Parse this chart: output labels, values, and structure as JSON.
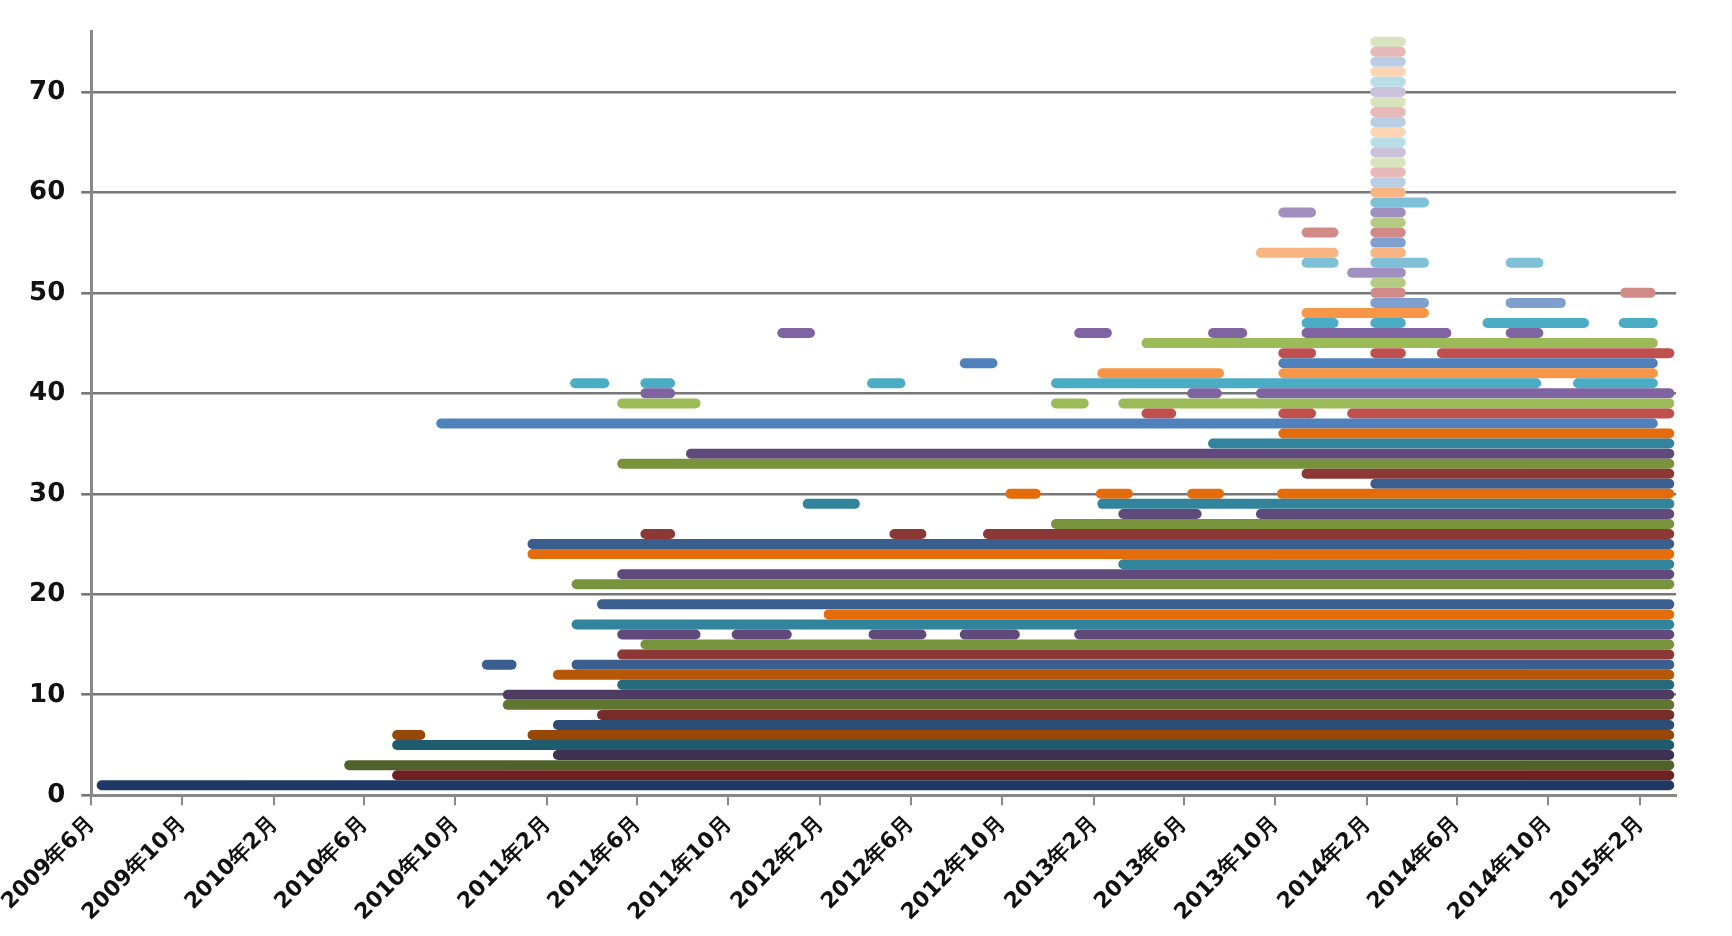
{
  "chart_data": {
    "type": "line",
    "grid": "y",
    "legend": false,
    "line_style": "solid",
    "xlim": [
      "2009-06-01",
      "2015-03-21"
    ],
    "ylim": [
      0,
      76
    ],
    "yticks": [
      0,
      10,
      20,
      30,
      40,
      50,
      60,
      70
    ],
    "xticks": [
      {
        "value": "2009-06",
        "label": "2009年6月"
      },
      {
        "value": "2009-10",
        "label": "2009年10月"
      },
      {
        "value": "2010-02",
        "label": "2010年2月"
      },
      {
        "value": "2010-06",
        "label": "2010年6月"
      },
      {
        "value": "2010-10",
        "label": "2010年10月"
      },
      {
        "value": "2011-02",
        "label": "2011年2月"
      },
      {
        "value": "2011-06",
        "label": "2011年6月"
      },
      {
        "value": "2011-10",
        "label": "2011年10月"
      },
      {
        "value": "2012-02",
        "label": "2012年2月"
      },
      {
        "value": "2012-06",
        "label": "2012年6月"
      },
      {
        "value": "2012-10",
        "label": "2012年10月"
      },
      {
        "value": "2013-02",
        "label": "2013年2月"
      },
      {
        "value": "2013-06",
        "label": "2013年6月"
      },
      {
        "value": "2013-10",
        "label": "2013年10月"
      },
      {
        "value": "2014-02",
        "label": "2014年2月"
      },
      {
        "value": "2014-06",
        "label": "2014年6月"
      },
      {
        "value": "2014-10",
        "label": "2014年10月"
      },
      {
        "value": "2015-02",
        "label": "2015年2月"
      }
    ],
    "series": [
      {
        "color": "#1f3864",
        "x": [
          "2009-06-15",
          "2015-03-12"
        ],
        "values": [
          1,
          1
        ]
      },
      {
        "color": "#6e2220",
        "x": [
          "2010-07-15",
          "2015-03-12"
        ],
        "values": [
          2,
          2
        ]
      },
      {
        "color": "#4f6228",
        "x": [
          "2010-05-12",
          "2015-03-12"
        ],
        "values": [
          3,
          3
        ]
      },
      {
        "color": "#3f3151",
        "x": [
          "2011-02-15",
          "2015-03-12"
        ],
        "values": [
          4,
          4
        ]
      },
      {
        "color": "#1f5c6e",
        "x": [
          "2010-07-15",
          "2015-03-12"
        ],
        "values": [
          5,
          5
        ]
      },
      {
        "color": "#974806",
        "x": [
          "2010-07-15",
          "2010-08-15"
        ],
        "values": [
          6,
          6
        ]
      },
      {
        "color": "#974806",
        "x": [
          "2011-01-12",
          "2015-03-12"
        ],
        "values": [
          6,
          6
        ]
      },
      {
        "color": "#2c4d75",
        "x": [
          "2011-02-15",
          "2015-03-12"
        ],
        "values": [
          7,
          7
        ]
      },
      {
        "color": "#772c2a",
        "x": [
          "2011-04-15",
          "2015-03-12"
        ],
        "values": [
          8,
          8
        ]
      },
      {
        "color": "#5f7530",
        "x": [
          "2010-12-10",
          "2015-03-12"
        ],
        "values": [
          9,
          9
        ]
      },
      {
        "color": "#4d3b62",
        "x": [
          "2010-12-10",
          "2015-03-12"
        ],
        "values": [
          10,
          10
        ]
      },
      {
        "color": "#276a7c",
        "x": [
          "2011-05-12",
          "2015-03-12"
        ],
        "values": [
          11,
          11
        ]
      },
      {
        "color": "#b65708",
        "x": [
          "2011-02-15",
          "2015-03-12"
        ],
        "values": [
          12,
          12
        ]
      },
      {
        "color": "#3a5f8f",
        "x": [
          "2010-11-12",
          "2010-12-15"
        ],
        "values": [
          13,
          13
        ]
      },
      {
        "color": "#3a5f8f",
        "x": [
          "2011-03-12",
          "2015-03-12"
        ],
        "values": [
          13,
          13
        ]
      },
      {
        "color": "#8c3836",
        "x": [
          "2011-05-12",
          "2015-03-12"
        ],
        "values": [
          14,
          14
        ]
      },
      {
        "color": "#77933c",
        "x": [
          "2011-06-12",
          "2015-03-12"
        ],
        "values": [
          15,
          15
        ]
      },
      {
        "color": "#604a7b",
        "x": [
          "2011-05-12",
          "2011-08-18"
        ],
        "values": [
          16,
          16
        ]
      },
      {
        "color": "#604a7b",
        "x": [
          "2011-10-12",
          "2011-12-18"
        ],
        "values": [
          16,
          16
        ]
      },
      {
        "color": "#604a7b",
        "x": [
          "2012-04-12",
          "2012-06-15"
        ],
        "values": [
          16,
          16
        ]
      },
      {
        "color": "#604a7b",
        "x": [
          "2012-08-12",
          "2012-10-18"
        ],
        "values": [
          16,
          16
        ]
      },
      {
        "color": "#604a7b",
        "x": [
          "2013-01-12",
          "2015-03-12"
        ],
        "values": [
          16,
          16
        ]
      },
      {
        "color": "#31849b",
        "x": [
          "2011-03-12",
          "2015-03-12"
        ],
        "values": [
          17,
          17
        ]
      },
      {
        "color": "#e46c0a",
        "x": [
          "2012-02-12",
          "2015-03-12"
        ],
        "values": [
          18,
          18
        ]
      },
      {
        "color": "#3a5f8f",
        "x": [
          "2011-04-15",
          "2015-03-12"
        ],
        "values": [
          19,
          19
        ]
      },
      {
        "color": "#77933c",
        "x": [
          "2011-03-12",
          "2015-03-12"
        ],
        "values": [
          21,
          21
        ]
      },
      {
        "color": "#604a7b",
        "x": [
          "2011-05-12",
          "2015-03-12"
        ],
        "values": [
          22,
          22
        ]
      },
      {
        "color": "#31849b",
        "x": [
          "2013-03-12",
          "2015-03-12"
        ],
        "values": [
          23,
          23
        ]
      },
      {
        "color": "#e46c0a",
        "x": [
          "2011-01-12",
          "2015-03-12"
        ],
        "values": [
          24,
          24
        ]
      },
      {
        "color": "#3a5f8f",
        "x": [
          "2011-01-12",
          "2015-03-12"
        ],
        "values": [
          25,
          25
        ]
      },
      {
        "color": "#8c3836",
        "x": [
          "2011-06-12",
          "2011-07-15"
        ],
        "values": [
          26,
          26
        ]
      },
      {
        "color": "#8c3836",
        "x": [
          "2012-05-10",
          "2012-06-15"
        ],
        "values": [
          26,
          26
        ]
      },
      {
        "color": "#8c3836",
        "x": [
          "2012-09-12",
          "2015-03-12"
        ],
        "values": [
          26,
          26
        ]
      },
      {
        "color": "#77933c",
        "x": [
          "2012-12-12",
          "2015-03-12"
        ],
        "values": [
          27,
          27
        ]
      },
      {
        "color": "#604a7b",
        "x": [
          "2013-03-12",
          "2013-06-18"
        ],
        "values": [
          28,
          28
        ]
      },
      {
        "color": "#604a7b",
        "x": [
          "2013-09-12",
          "2015-03-12"
        ],
        "values": [
          28,
          28
        ]
      },
      {
        "color": "#31849b",
        "x": [
          "2012-01-15",
          "2012-03-18"
        ],
        "values": [
          29,
          29
        ]
      },
      {
        "color": "#31849b",
        "x": [
          "2013-02-12",
          "2015-03-12"
        ],
        "values": [
          29,
          29
        ]
      },
      {
        "color": "#e46c0a",
        "x": [
          "2012-10-12",
          "2012-11-15"
        ],
        "values": [
          30,
          30
        ]
      },
      {
        "color": "#e46c0a",
        "x": [
          "2013-02-10",
          "2013-03-18"
        ],
        "values": [
          30,
          30
        ]
      },
      {
        "color": "#e46c0a",
        "x": [
          "2013-06-12",
          "2013-07-18"
        ],
        "values": [
          30,
          30
        ]
      },
      {
        "color": "#e46c0a",
        "x": [
          "2013-10-10",
          "2015-03-12"
        ],
        "values": [
          30,
          30
        ]
      },
      {
        "color": "#3a5f8f",
        "x": [
          "2014-02-12",
          "2015-03-12"
        ],
        "values": [
          31,
          31
        ]
      },
      {
        "color": "#8c3836",
        "x": [
          "2013-11-12",
          "2015-03-12"
        ],
        "values": [
          32,
          32
        ]
      },
      {
        "color": "#77933c",
        "x": [
          "2011-05-12",
          "2015-03-12"
        ],
        "values": [
          33,
          33
        ]
      },
      {
        "color": "#604a7b",
        "x": [
          "2011-08-12",
          "2015-03-12"
        ],
        "values": [
          34,
          34
        ]
      },
      {
        "color": "#31849b",
        "x": [
          "2013-07-10",
          "2015-03-12"
        ],
        "values": [
          35,
          35
        ]
      },
      {
        "color": "#e46c0a",
        "x": [
          "2013-10-12",
          "2015-03-12"
        ],
        "values": [
          36,
          36
        ]
      },
      {
        "color": "#4f81bd",
        "x": [
          "2010-09-12",
          "2015-02-18"
        ],
        "values": [
          37,
          37
        ]
      },
      {
        "color": "#c0504d",
        "x": [
          "2013-04-12",
          "2013-05-15"
        ],
        "values": [
          38,
          38
        ]
      },
      {
        "color": "#c0504d",
        "x": [
          "2013-10-12",
          "2013-11-18"
        ],
        "values": [
          38,
          38
        ]
      },
      {
        "color": "#c0504d",
        "x": [
          "2014-01-12",
          "2015-03-12"
        ],
        "values": [
          38,
          38
        ]
      },
      {
        "color": "#9bbb59",
        "x": [
          "2011-05-12",
          "2011-08-18"
        ],
        "values": [
          39,
          39
        ]
      },
      {
        "color": "#9bbb59",
        "x": [
          "2012-12-12",
          "2013-01-18"
        ],
        "values": [
          39,
          39
        ]
      },
      {
        "color": "#9bbb59",
        "x": [
          "2013-03-12",
          "2015-03-12"
        ],
        "values": [
          39,
          39
        ]
      },
      {
        "color": "#8064a2",
        "x": [
          "2011-06-12",
          "2011-07-15"
        ],
        "values": [
          40,
          40
        ]
      },
      {
        "color": "#8064a2",
        "x": [
          "2013-06-12",
          "2013-07-15"
        ],
        "values": [
          40,
          40
        ]
      },
      {
        "color": "#8064a2",
        "x": [
          "2013-09-12",
          "2015-03-12"
        ],
        "values": [
          40,
          40
        ]
      },
      {
        "color": "#4bacc6",
        "x": [
          "2011-03-10",
          "2011-04-18"
        ],
        "values": [
          41,
          41
        ]
      },
      {
        "color": "#4bacc6",
        "x": [
          "2011-06-12",
          "2011-07-15"
        ],
        "values": [
          41,
          41
        ]
      },
      {
        "color": "#4bacc6",
        "x": [
          "2012-04-10",
          "2012-05-18"
        ],
        "values": [
          41,
          41
        ]
      },
      {
        "color": "#4bacc6",
        "x": [
          "2012-12-12",
          "2014-09-15"
        ],
        "values": [
          41,
          41
        ]
      },
      {
        "color": "#4bacc6",
        "x": [
          "2014-11-10",
          "2015-02-18"
        ],
        "values": [
          41,
          41
        ]
      },
      {
        "color": "#f79646",
        "x": [
          "2013-02-12",
          "2013-07-18"
        ],
        "values": [
          42,
          42
        ]
      },
      {
        "color": "#f79646",
        "x": [
          "2013-10-12",
          "2015-02-18"
        ],
        "values": [
          42,
          42
        ]
      },
      {
        "color": "#4f81bd",
        "x": [
          "2012-08-12",
          "2012-09-18"
        ],
        "values": [
          43,
          43
        ]
      },
      {
        "color": "#4f81bd",
        "x": [
          "2013-10-12",
          "2015-02-18"
        ],
        "values": [
          43,
          43
        ]
      },
      {
        "color": "#c0504d",
        "x": [
          "2013-10-12",
          "2013-11-18"
        ],
        "values": [
          44,
          44
        ]
      },
      {
        "color": "#c0504d",
        "x": [
          "2014-02-12",
          "2014-03-18"
        ],
        "values": [
          44,
          44
        ]
      },
      {
        "color": "#c0504d",
        "x": [
          "2014-05-12",
          "2015-03-12"
        ],
        "values": [
          44,
          44
        ]
      },
      {
        "color": "#9bbb59",
        "x": [
          "2013-04-12",
          "2015-02-18"
        ],
        "values": [
          45,
          45
        ]
      },
      {
        "color": "#8064a2",
        "x": [
          "2011-12-12",
          "2012-01-18"
        ],
        "values": [
          46,
          46
        ]
      },
      {
        "color": "#8064a2",
        "x": [
          "2013-01-12",
          "2013-02-18"
        ],
        "values": [
          46,
          46
        ]
      },
      {
        "color": "#8064a2",
        "x": [
          "2013-07-10",
          "2013-08-18"
        ],
        "values": [
          46,
          46
        ]
      },
      {
        "color": "#8064a2",
        "x": [
          "2013-11-12",
          "2014-05-18"
        ],
        "values": [
          46,
          46
        ]
      },
      {
        "color": "#8064a2",
        "x": [
          "2014-08-12",
          "2014-09-18"
        ],
        "values": [
          46,
          46
        ]
      },
      {
        "color": "#4bacc6",
        "x": [
          "2013-11-12",
          "2013-12-18"
        ],
        "values": [
          47,
          47
        ]
      },
      {
        "color": "#4bacc6",
        "x": [
          "2014-02-12",
          "2014-03-18"
        ],
        "values": [
          47,
          47
        ]
      },
      {
        "color": "#4bacc6",
        "x": [
          "2014-07-12",
          "2014-11-18"
        ],
        "values": [
          47,
          47
        ]
      },
      {
        "color": "#4bacc6",
        "x": [
          "2015-01-10",
          "2015-02-18"
        ],
        "values": [
          47,
          47
        ]
      },
      {
        "color": "#f79646",
        "x": [
          "2013-11-12",
          "2014-04-18"
        ],
        "values": [
          48,
          48
        ]
      },
      {
        "color": "#7f9fcf",
        "x": [
          "2014-02-12",
          "2014-04-18"
        ],
        "values": [
          49,
          49
        ]
      },
      {
        "color": "#7f9fcf",
        "x": [
          "2014-08-12",
          "2014-10-18"
        ],
        "values": [
          49,
          49
        ]
      },
      {
        "color": "#d08b89",
        "x": [
          "2014-02-12",
          "2014-03-18"
        ],
        "values": [
          50,
          50
        ]
      },
      {
        "color": "#d08b89",
        "x": [
          "2015-01-12",
          "2015-02-15"
        ],
        "values": [
          50,
          50
        ]
      },
      {
        "color": "#b3cc82",
        "x": [
          "2014-02-12",
          "2014-03-18"
        ],
        "values": [
          51,
          51
        ]
      },
      {
        "color": "#a08fbf",
        "x": [
          "2014-01-12",
          "2014-03-18"
        ],
        "values": [
          52,
          52
        ]
      },
      {
        "color": "#7fc0d6",
        "x": [
          "2013-11-12",
          "2013-12-18"
        ],
        "values": [
          53,
          53
        ]
      },
      {
        "color": "#7fc0d6",
        "x": [
          "2014-02-12",
          "2014-04-18"
        ],
        "values": [
          53,
          53
        ]
      },
      {
        "color": "#7fc0d6",
        "x": [
          "2014-08-12",
          "2014-09-18"
        ],
        "values": [
          53,
          53
        ]
      },
      {
        "color": "#f9b482",
        "x": [
          "2013-09-12",
          "2013-12-18"
        ],
        "values": [
          54,
          54
        ]
      },
      {
        "color": "#f9b482",
        "x": [
          "2014-02-12",
          "2014-03-18"
        ],
        "values": [
          54,
          54
        ]
      },
      {
        "color": "#7f9fcf",
        "x": [
          "2014-02-12",
          "2014-03-18"
        ],
        "values": [
          55,
          55
        ]
      },
      {
        "color": "#d08b89",
        "x": [
          "2013-11-12",
          "2013-12-18"
        ],
        "values": [
          56,
          56
        ]
      },
      {
        "color": "#d08b89",
        "x": [
          "2014-02-12",
          "2014-03-18"
        ],
        "values": [
          56,
          56
        ]
      },
      {
        "color": "#b3cc82",
        "x": [
          "2014-02-12",
          "2014-03-18"
        ],
        "values": [
          57,
          57
        ]
      },
      {
        "color": "#a08fbf",
        "x": [
          "2013-10-12",
          "2013-11-18"
        ],
        "values": [
          58,
          58
        ]
      },
      {
        "color": "#a08fbf",
        "x": [
          "2014-02-12",
          "2014-03-18"
        ],
        "values": [
          58,
          58
        ]
      },
      {
        "color": "#7fc0d6",
        "x": [
          "2014-02-12",
          "2014-04-18"
        ],
        "values": [
          59,
          59
        ]
      },
      {
        "color": "#f9b482",
        "x": [
          "2014-02-12",
          "2014-03-18"
        ],
        "values": [
          60,
          60
        ]
      },
      {
        "color": "#b9cde5",
        "x": [
          "2014-02-12",
          "2014-03-18"
        ],
        "values": [
          61,
          61
        ]
      },
      {
        "color": "#e6b9b8",
        "x": [
          "2014-02-12",
          "2014-03-18"
        ],
        "values": [
          62,
          62
        ]
      },
      {
        "color": "#d7e4bd",
        "x": [
          "2014-02-12",
          "2014-03-18"
        ],
        "values": [
          63,
          63
        ]
      },
      {
        "color": "#ccc1da",
        "x": [
          "2014-02-12",
          "2014-03-18"
        ],
        "values": [
          64,
          64
        ]
      },
      {
        "color": "#b7dee8",
        "x": [
          "2014-02-12",
          "2014-03-18"
        ],
        "values": [
          65,
          65
        ]
      },
      {
        "color": "#fcd5b5",
        "x": [
          "2014-02-12",
          "2014-03-18"
        ],
        "values": [
          66,
          66
        ]
      },
      {
        "color": "#b9cde5",
        "x": [
          "2014-02-12",
          "2014-03-18"
        ],
        "values": [
          67,
          67
        ]
      },
      {
        "color": "#e6b9b8",
        "x": [
          "2014-02-12",
          "2014-03-18"
        ],
        "values": [
          68,
          68
        ]
      },
      {
        "color": "#d7e4bd",
        "x": [
          "2014-02-12",
          "2014-03-18"
        ],
        "values": [
          69,
          69
        ]
      },
      {
        "color": "#ccc1da",
        "x": [
          "2014-02-12",
          "2014-03-18"
        ],
        "values": [
          70,
          70
        ]
      },
      {
        "color": "#b7dee8",
        "x": [
          "2014-02-12",
          "2014-03-18"
        ],
        "values": [
          71,
          71
        ]
      },
      {
        "color": "#fcd5b5",
        "x": [
          "2014-02-12",
          "2014-03-18"
        ],
        "values": [
          72,
          72
        ]
      },
      {
        "color": "#b9cde5",
        "x": [
          "2014-02-12",
          "2014-03-18"
        ],
        "values": [
          73,
          73
        ]
      },
      {
        "color": "#e6b9b8",
        "x": [
          "2014-02-12",
          "2014-03-18"
        ],
        "values": [
          74,
          74
        ]
      },
      {
        "color": "#d7e4bd",
        "x": [
          "2014-02-12",
          "2014-03-18"
        ],
        "values": [
          75,
          75
        ]
      }
    ]
  }
}
